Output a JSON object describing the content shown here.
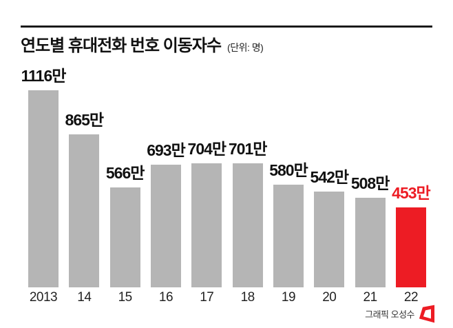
{
  "title": {
    "text": "연도별 휴대전화 번호 이동자수",
    "unit": "(단위: 명)"
  },
  "credit": {
    "text": "그래픽 오성수",
    "logo": "publisher-logo"
  },
  "colors": {
    "bar": "#b5b5b5",
    "highlight": "#ed1c24",
    "text": "#111111"
  },
  "chart_data": {
    "type": "bar",
    "title": "연도별 휴대전화 번호 이동자수",
    "unit_label": "명",
    "categories": [
      "2013",
      "14",
      "15",
      "16",
      "17",
      "18",
      "19",
      "20",
      "21",
      "22"
    ],
    "values": [
      1116,
      865,
      566,
      693,
      704,
      701,
      580,
      542,
      508,
      453
    ],
    "value_labels": [
      "1116만",
      "865만",
      "566만",
      "693만",
      "704만",
      "701만",
      "580만",
      "542만",
      "508만",
      "453만"
    ],
    "highlight_index": 9,
    "ylim": [
      0,
      1116
    ],
    "grid": false,
    "legend": false,
    "xlabel": "",
    "ylabel": ""
  }
}
